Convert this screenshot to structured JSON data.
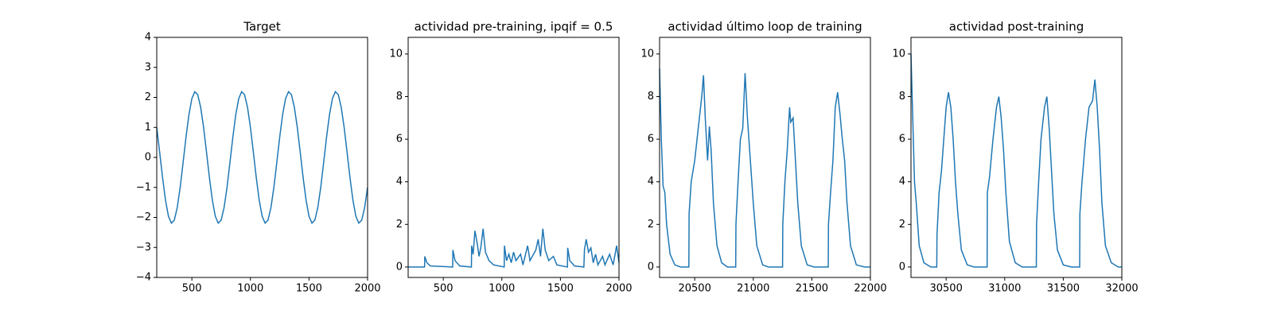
{
  "chart_data": [
    {
      "type": "line",
      "title": "Target",
      "x": [
        200,
        225,
        250,
        275,
        300,
        325,
        350,
        375,
        400,
        425,
        450,
        475,
        500,
        525,
        550,
        575,
        600,
        625,
        650,
        675,
        700,
        725,
        750,
        775,
        800,
        825,
        850,
        875,
        900,
        925,
        950,
        975,
        1000,
        1025,
        1050,
        1075,
        1100,
        1125,
        1150,
        1175,
        1200,
        1225,
        1250,
        1275,
        1300,
        1325,
        1350,
        1375,
        1400,
        1425,
        1450,
        1475,
        1500,
        1525,
        1550,
        1575,
        1600,
        1625,
        1650,
        1675,
        1700,
        1725,
        1750,
        1775,
        1800,
        1825,
        1850,
        1875,
        1900,
        1925,
        1950,
        1975,
        2000
      ],
      "series": [
        {
          "color": "#1f77b4",
          "values": [
            1.0,
            0.17,
            -0.68,
            -1.43,
            -1.96,
            -2.19,
            -2.09,
            -1.67,
            -1.0,
            -0.17,
            0.68,
            1.43,
            1.96,
            2.19,
            2.09,
            1.67,
            1.0,
            0.17,
            -0.68,
            -1.43,
            -1.96,
            -2.19,
            -2.09,
            -1.67,
            -1.0,
            -0.17,
            0.68,
            1.43,
            1.96,
            2.19,
            2.09,
            1.67,
            1.0,
            0.17,
            -0.68,
            -1.43,
            -1.96,
            -2.19,
            -2.09,
            -1.67,
            -1.0,
            -0.17,
            0.68,
            1.43,
            1.96,
            2.19,
            2.09,
            1.67,
            1.0,
            0.17,
            -0.68,
            -1.43,
            -1.96,
            -2.19,
            -2.09,
            -1.67,
            -1.0,
            -0.17,
            0.68,
            1.43,
            1.96,
            2.19,
            2.09,
            1.67,
            1.0,
            0.17,
            -0.68,
            -1.43,
            -1.96,
            -2.19,
            -2.09,
            -1.67,
            -1.0
          ]
        }
      ],
      "xlim": [
        200,
        2000
      ],
      "ylim": [
        -4,
        4
      ],
      "xticks": [
        500,
        1000,
        1500,
        2000
      ],
      "yticks": [
        {
          "value": -4,
          "label": "−4"
        },
        {
          "value": -3,
          "label": "−3"
        },
        {
          "value": -2,
          "label": "−2"
        },
        {
          "value": -1,
          "label": "−1"
        },
        0,
        1,
        2,
        3,
        4
      ]
    },
    {
      "type": "line",
      "title": "actividad pre-training, ipqif = 0.5",
      "x": [
        200,
        340,
        342,
        360,
        390,
        580,
        582,
        600,
        640,
        740,
        742,
        755,
        770,
        790,
        805,
        820,
        840,
        860,
        890,
        930,
        1020,
        1022,
        1040,
        1060,
        1080,
        1100,
        1120,
        1160,
        1180,
        1220,
        1240,
        1290,
        1310,
        1330,
        1350,
        1370,
        1400,
        1440,
        1470,
        1560,
        1562,
        1580,
        1620,
        1700,
        1705,
        1720,
        1740,
        1760,
        1780,
        1800,
        1820,
        1860,
        1880,
        1920,
        1950,
        1980,
        2000
      ],
      "series": [
        {
          "color": "#1f77b4",
          "values": [
            0,
            0,
            0.5,
            0.2,
            0.05,
            0,
            0.8,
            0.3,
            0.05,
            0,
            1,
            0.6,
            1.7,
            1.1,
            0.5,
            0.9,
            1.8,
            0.7,
            0.3,
            0.1,
            0,
            1,
            0.3,
            0.6,
            0.2,
            0.7,
            0.3,
            0.6,
            0.1,
            1,
            0.3,
            0.8,
            1.3,
            0.5,
            1.8,
            0.8,
            0.3,
            0.5,
            0.1,
            0,
            0.9,
            0.3,
            0.05,
            0,
            0.8,
            1.3,
            0.7,
            0.9,
            0.2,
            0.6,
            0.1,
            0.5,
            0.1,
            0.6,
            0.1,
            1,
            0.2
          ]
        }
      ],
      "xlim": [
        200,
        2000
      ],
      "ylim": [
        -0.49,
        10.78
      ],
      "xticks": [
        500,
        1000,
        1500,
        2000
      ],
      "yticks": [
        0,
        2,
        4,
        6,
        8,
        10
      ]
    },
    {
      "type": "line",
      "title": "actividad último loop de training",
      "x": [
        20200,
        20215,
        20230,
        20245,
        20260,
        20290,
        20330,
        20380,
        20450,
        20452,
        20470,
        20500,
        20530,
        20560,
        20575,
        20590,
        20610,
        20625,
        20640,
        20660,
        20690,
        20730,
        20780,
        20850,
        20852,
        20870,
        20890,
        20910,
        20930,
        20950,
        20975,
        21000,
        21030,
        21080,
        21130,
        21250,
        21252,
        21270,
        21290,
        21310,
        21320,
        21340,
        21360,
        21380,
        21410,
        21460,
        21520,
        21640,
        21642,
        21660,
        21680,
        21700,
        21720,
        21740,
        21760,
        21780,
        21800,
        21830,
        21880,
        21950,
        22000
      ],
      "series": [
        {
          "color": "#1f77b4",
          "values": [
            9.3,
            6,
            3.8,
            3.5,
            2,
            0.6,
            0.1,
            0,
            0,
            2.5,
            4,
            5,
            6.5,
            8,
            9,
            7,
            5,
            6.6,
            5.5,
            3,
            1,
            0.2,
            0,
            0,
            2,
            4,
            6,
            6.5,
            9.1,
            7,
            5,
            3,
            1,
            0.1,
            0,
            0,
            2,
            4,
            5.5,
            7.5,
            6.8,
            7,
            5,
            3,
            1,
            0.1,
            0,
            0,
            2,
            3.5,
            5,
            7.5,
            8.2,
            7.2,
            6,
            5,
            3,
            1,
            0.1,
            0,
            0
          ]
        }
      ],
      "xlim": [
        20200,
        22000
      ],
      "ylim": [
        -0.49,
        10.78
      ],
      "xticks": [
        20500,
        21000,
        21500,
        22000
      ],
      "yticks": [
        0,
        2,
        4,
        6,
        8,
        10
      ]
    },
    {
      "type": "line",
      "title": "actividad post-training",
      "x": [
        30200,
        30215,
        30230,
        30245,
        30270,
        30310,
        30370,
        30420,
        30422,
        30440,
        30460,
        30480,
        30500,
        30520,
        30540,
        30560,
        30580,
        30600,
        30630,
        30680,
        30740,
        30850,
        30852,
        30870,
        30900,
        30930,
        30950,
        30970,
        30990,
        31010,
        31040,
        31090,
        31150,
        31270,
        31272,
        31290,
        31310,
        31340,
        31360,
        31380,
        31400,
        31420,
        31450,
        31500,
        31570,
        31640,
        31642,
        31660,
        31690,
        31720,
        31750,
        31770,
        31790,
        31810,
        31830,
        31860,
        31910,
        31970,
        32000
      ],
      "series": [
        {
          "color": "#1f77b4",
          "values": [
            10,
            7,
            4,
            3,
            1,
            0.2,
            0,
            0,
            1.5,
            3.5,
            4.5,
            6,
            7.5,
            8.2,
            7.5,
            6,
            4,
            2.5,
            0.8,
            0.1,
            0,
            0,
            3.5,
            4.2,
            6,
            7.5,
            8,
            7,
            5.5,
            3.5,
            1.2,
            0.2,
            0,
            0,
            2,
            4,
            6,
            7.5,
            8,
            6.5,
            4.5,
            2.5,
            0.8,
            0.1,
            0,
            0,
            2.5,
            4,
            6,
            7.5,
            7.8,
            8.8,
            7.5,
            5.5,
            3,
            1,
            0.2,
            0,
            0
          ]
        }
      ],
      "xlim": [
        30200,
        32000
      ],
      "ylim": [
        -0.49,
        10.78
      ],
      "xticks": [
        30500,
        31000,
        31500,
        32000
      ],
      "yticks": [
        0,
        2,
        4,
        6,
        8,
        10
      ]
    }
  ]
}
